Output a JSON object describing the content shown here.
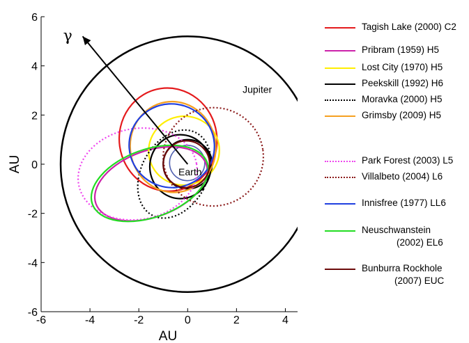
{
  "chart_data": {
    "type": "line",
    "xlabel": "AU",
    "ylabel": "AU",
    "xlim": [
      -6,
      4.5
    ],
    "ylim": [
      -6,
      6
    ],
    "xticks": [
      "-6",
      "-4",
      "-2",
      "0",
      "2",
      "4"
    ],
    "yticks": [
      "-6",
      "-4",
      "-2",
      "0",
      "2",
      "4",
      "6"
    ],
    "grid": false,
    "legend_position": "right",
    "annotations": {
      "gamma": "γ",
      "earth": "Earth",
      "jupiter": "Jupiter"
    },
    "gamma_arrow": {
      "from": [
        0,
        0
      ],
      "to": [
        -4.3,
        5.2
      ]
    },
    "reference_orbits": [
      {
        "name": "Jupiter",
        "center": [
          0,
          0
        ],
        "radius": 5.2,
        "color": "#000000",
        "width": 2.5
      },
      {
        "name": "Earth",
        "center": [
          0,
          0
        ],
        "radius": 1.0,
        "color": "#000000",
        "width": 2.2
      },
      {
        "name": "",
        "center": [
          -0.02,
          0.05
        ],
        "radius": 0.72,
        "color": "#5060b0",
        "width": 1.6
      }
    ],
    "series": [
      {
        "name": "Tagish Lake (2000) C2",
        "color": "#e41a1c",
        "dash": "solid",
        "cx": -0.8,
        "cy": 1.0,
        "rx": 2.0,
        "ry": 2.1,
        "rot": -8
      },
      {
        "name": "Pribram (1959) H5",
        "color": "#cc22aa",
        "dash": "solid",
        "cx": -1.5,
        "cy": -0.8,
        "rx": 2.4,
        "ry": 1.35,
        "rot": -20
      },
      {
        "name": "Lost City (1970) H5",
        "color": "#ffee00",
        "dash": "solid",
        "cx": -0.15,
        "cy": 0.55,
        "rx": 1.45,
        "ry": 1.4,
        "rot": -12
      },
      {
        "name": "Peekskill (1992) H6",
        "color": "#000000",
        "dash": "solid",
        "cx": -0.3,
        "cy": -0.1,
        "rx": 1.25,
        "ry": 1.3,
        "rot": 0
      },
      {
        "name": "Moravka (2000) H5",
        "color": "#000000",
        "dash": "dotted",
        "cx": -0.55,
        "cy": -0.4,
        "rx": 1.35,
        "ry": 1.9,
        "rot": 28
      },
      {
        "name": "Grimsby (2009) H5",
        "color": "#f5a020",
        "dash": "solid",
        "cx": -0.6,
        "cy": 0.7,
        "rx": 1.75,
        "ry": 1.85,
        "rot": -10
      },
      {
        "name": "Park Forest (2003) L5",
        "color": "#ee44ee",
        "dash": "dotted",
        "cx": -2.05,
        "cy": -0.4,
        "rx": 2.45,
        "ry": 1.85,
        "rot": -10
      },
      {
        "name": "Villalbeto (2004) L6",
        "color": "#8b1a1a",
        "dash": "dotted",
        "cx": 1.05,
        "cy": 0.3,
        "rx": 2.05,
        "ry": 2.0,
        "rot": -8
      },
      {
        "name": "Innisfree (1977) LL6",
        "color": "#1f3fe0",
        "dash": "solid",
        "cx": -0.65,
        "cy": 0.75,
        "rx": 1.75,
        "ry": 1.7,
        "rot": 18
      },
      {
        "name": "Neuschwanstein (2002) EL6",
        "color": "#22dd22",
        "dash": "solid",
        "cx": -1.55,
        "cy": -0.78,
        "rx": 2.5,
        "ry": 1.38,
        "rot": -20
      },
      {
        "name": "Bunburra Rockhole (2007) EUC",
        "color": "#6b0a0a",
        "dash": "solid",
        "cx": -0.05,
        "cy": 0.0,
        "rx": 0.95,
        "ry": 0.95,
        "rot": 0
      }
    ]
  },
  "legend": [
    {
      "label": "Tagish Lake (2000) C2",
      "color": "#e41a1c",
      "style": "solid"
    },
    {
      "label": "Pribram (1959) H5",
      "color": "#cc22aa",
      "style": "solid"
    },
    {
      "label": "Lost City (1970) H5",
      "color": "#ffee00",
      "style": "solid"
    },
    {
      "label": "Peekskill (1992) H6",
      "color": "#000000",
      "style": "solid"
    },
    {
      "label": "Moravka (2000) H5",
      "color": "#000000",
      "style": "dotted"
    },
    {
      "label": "Grimsby (2009) H5",
      "color": "#f5a020",
      "style": "solid"
    },
    {
      "label": "Park Forest (2003) L5",
      "color": "#ee44ee",
      "style": "dotted"
    },
    {
      "label": "Villalbeto (2004) L6",
      "color": "#8b1a1a",
      "style": "dotted"
    },
    {
      "label": "Innisfree (1977) LL6",
      "color": "#1f3fe0",
      "style": "solid"
    },
    {
      "label": "Neuschwanstein",
      "label2": "(2002) EL6",
      "color": "#22dd22",
      "style": "solid"
    },
    {
      "label": "Bunburra Rockhole",
      "label2": "(2007) EUC",
      "color": "#6b0a0a",
      "style": "solid"
    }
  ]
}
